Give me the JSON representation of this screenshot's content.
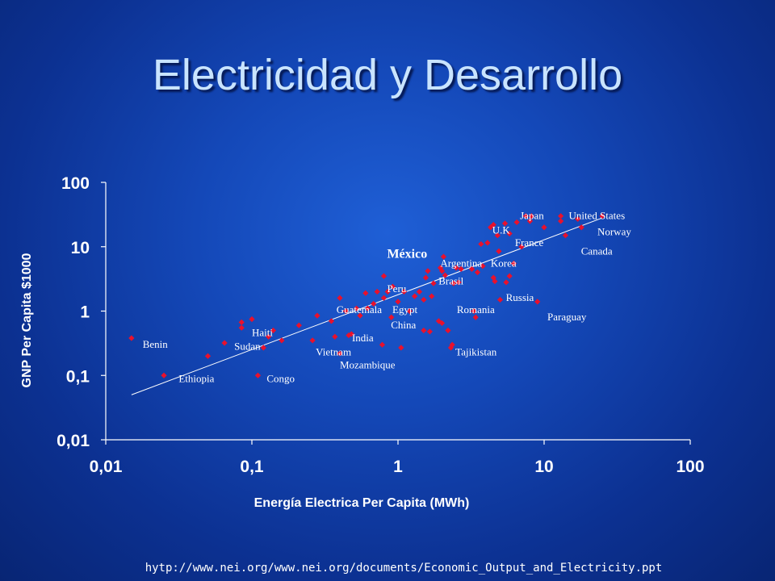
{
  "slide": {
    "title": "Electricidad y Desarrollo",
    "source": "hytp://www.nei.org/www.nei.org/documents/Economic_Output_and_Electricity.ppt"
  },
  "colors": {
    "point": "#e8112d",
    "axis": "#ffffff",
    "trend": "#ffffff"
  },
  "chart_data": {
    "type": "scatter",
    "xlabel": "Energía Electrica  Per Capita (MWh)",
    "ylabel": "GNP Per Capita $1000",
    "xscale": "log",
    "yscale": "log",
    "xlim": [
      0.01,
      100
    ],
    "ylim": [
      0.01,
      100
    ],
    "xticks": [
      "0,01",
      "0,1",
      "1",
      "10",
      "100"
    ],
    "yticks": [
      "0,01",
      "0,1",
      "1",
      "10",
      "100"
    ],
    "grid": false,
    "trendline": {
      "x": [
        0.015,
        25
      ],
      "y": [
        0.05,
        28
      ]
    },
    "labels": [
      {
        "text": "Japan",
        "x": 6.5,
        "y": 30
      },
      {
        "text": "United States",
        "x": 14,
        "y": 30
      },
      {
        "text": "Norway",
        "x": 22,
        "y": 17
      },
      {
        "text": "U.K",
        "x": 4.2,
        "y": 18
      },
      {
        "text": "France",
        "x": 6,
        "y": 11.5
      },
      {
        "text": "Canada",
        "x": 17,
        "y": 8.5
      },
      {
        "text": "México",
        "x": 0.8,
        "y": 7.5,
        "bold": true
      },
      {
        "text": "Argentina",
        "x": 1.85,
        "y": 5.5
      },
      {
        "text": "Korea",
        "x": 4.1,
        "y": 5.5
      },
      {
        "text": "Brasil",
        "x": 1.8,
        "y": 2.9
      },
      {
        "text": "Peru",
        "x": 0.8,
        "y": 2.2
      },
      {
        "text": "Russia",
        "x": 5.2,
        "y": 1.6
      },
      {
        "text": "Guatemala",
        "x": 0.36,
        "y": 1.05
      },
      {
        "text": "Egypt",
        "x": 0.87,
        "y": 1.05
      },
      {
        "text": "Romania",
        "x": 2.4,
        "y": 1.05
      },
      {
        "text": "Paraguay",
        "x": 10,
        "y": 0.8
      },
      {
        "text": "China",
        "x": 0.85,
        "y": 0.6
      },
      {
        "text": "Haiti",
        "x": 0.095,
        "y": 0.46
      },
      {
        "text": "India",
        "x": 0.46,
        "y": 0.38
      },
      {
        "text": "Benin",
        "x": 0.017,
        "y": 0.3
      },
      {
        "text": "Sudan",
        "x": 0.072,
        "y": 0.28
      },
      {
        "text": "Vietnam",
        "x": 0.26,
        "y": 0.23
      },
      {
        "text": "Tajikistan",
        "x": 2.35,
        "y": 0.23
      },
      {
        "text": "Mozambique",
        "x": 0.38,
        "y": 0.145
      },
      {
        "text": "Ethiopia",
        "x": 0.03,
        "y": 0.088
      },
      {
        "text": "Congo",
        "x": 0.12,
        "y": 0.088
      }
    ],
    "points": [
      {
        "x": 0.015,
        "y": 0.38
      },
      {
        "x": 0.025,
        "y": 0.1
      },
      {
        "x": 0.05,
        "y": 0.2
      },
      {
        "x": 0.065,
        "y": 0.32
      },
      {
        "x": 0.085,
        "y": 0.55
      },
      {
        "x": 0.085,
        "y": 0.67
      },
      {
        "x": 0.1,
        "y": 0.75
      },
      {
        "x": 0.11,
        "y": 0.1
      },
      {
        "x": 0.12,
        "y": 0.27
      },
      {
        "x": 0.13,
        "y": 0.4
      },
      {
        "x": 0.14,
        "y": 0.5
      },
      {
        "x": 0.16,
        "y": 0.35
      },
      {
        "x": 0.21,
        "y": 0.6
      },
      {
        "x": 0.26,
        "y": 0.35
      },
      {
        "x": 0.28,
        "y": 0.85
      },
      {
        "x": 0.35,
        "y": 0.7
      },
      {
        "x": 0.37,
        "y": 0.4
      },
      {
        "x": 0.4,
        "y": 1.6
      },
      {
        "x": 0.4,
        "y": 0.22
      },
      {
        "x": 0.44,
        "y": 1.0
      },
      {
        "x": 0.46,
        "y": 0.42
      },
      {
        "x": 0.48,
        "y": 0.44
      },
      {
        "x": 0.52,
        "y": 1.1
      },
      {
        "x": 0.55,
        "y": 0.85
      },
      {
        "x": 0.6,
        "y": 1.9
      },
      {
        "x": 0.62,
        "y": 1.1
      },
      {
        "x": 0.68,
        "y": 1.3
      },
      {
        "x": 0.72,
        "y": 2.0
      },
      {
        "x": 0.78,
        "y": 0.3
      },
      {
        "x": 0.8,
        "y": 3.5
      },
      {
        "x": 0.8,
        "y": 1.6
      },
      {
        "x": 0.85,
        "y": 2.0
      },
      {
        "x": 0.9,
        "y": 0.8
      },
      {
        "x": 0.92,
        "y": 2.4
      },
      {
        "x": 1.0,
        "y": 1.4
      },
      {
        "x": 1.05,
        "y": 0.27
      },
      {
        "x": 1.1,
        "y": 2.0
      },
      {
        "x": 1.2,
        "y": 1.0
      },
      {
        "x": 1.3,
        "y": 1.7
      },
      {
        "x": 1.4,
        "y": 2.0
      },
      {
        "x": 1.5,
        "y": 1.5
      },
      {
        "x": 1.5,
        "y": 0.5
      },
      {
        "x": 1.55,
        "y": 3.3
      },
      {
        "x": 1.6,
        "y": 4.2
      },
      {
        "x": 1.65,
        "y": 0.48
      },
      {
        "x": 1.7,
        "y": 1.7
      },
      {
        "x": 1.75,
        "y": 2.7
      },
      {
        "x": 1.9,
        "y": 0.7
      },
      {
        "x": 1.95,
        "y": 4.7
      },
      {
        "x": 2.0,
        "y": 0.65
      },
      {
        "x": 2.0,
        "y": 4.2
      },
      {
        "x": 2.05,
        "y": 7.0
      },
      {
        "x": 2.1,
        "y": 3.6
      },
      {
        "x": 2.2,
        "y": 0.5
      },
      {
        "x": 2.3,
        "y": 0.27
      },
      {
        "x": 2.35,
        "y": 0.3
      },
      {
        "x": 2.4,
        "y": 2.7
      },
      {
        "x": 2.5,
        "y": 4.7
      },
      {
        "x": 2.6,
        "y": 2.8
      },
      {
        "x": 2.7,
        "y": 4.5
      },
      {
        "x": 3.2,
        "y": 4.5
      },
      {
        "x": 3.3,
        "y": 1.0
      },
      {
        "x": 3.4,
        "y": 0.8
      },
      {
        "x": 3.5,
        "y": 4.0
      },
      {
        "x": 3.7,
        "y": 11.0
      },
      {
        "x": 3.8,
        "y": 5.0
      },
      {
        "x": 4.1,
        "y": 11.5
      },
      {
        "x": 4.3,
        "y": 20.0
      },
      {
        "x": 4.5,
        "y": 22.0
      },
      {
        "x": 4.5,
        "y": 3.3
      },
      {
        "x": 4.6,
        "y": 2.9
      },
      {
        "x": 4.8,
        "y": 15.0
      },
      {
        "x": 4.9,
        "y": 8.5
      },
      {
        "x": 5.0,
        "y": 1.5
      },
      {
        "x": 5.4,
        "y": 23.0
      },
      {
        "x": 5.5,
        "y": 2.8
      },
      {
        "x": 5.8,
        "y": 16.0
      },
      {
        "x": 5.8,
        "y": 3.5
      },
      {
        "x": 6.2,
        "y": 5.5
      },
      {
        "x": 6.5,
        "y": 24.0
      },
      {
        "x": 7.0,
        "y": 10.0
      },
      {
        "x": 7.5,
        "y": 30.0
      },
      {
        "x": 8.0,
        "y": 25.0
      },
      {
        "x": 8.2,
        "y": 30.0
      },
      {
        "x": 9.0,
        "y": 1.4
      },
      {
        "x": 10.0,
        "y": 20.0
      },
      {
        "x": 13.0,
        "y": 25.0
      },
      {
        "x": 13.0,
        "y": 30.0
      },
      {
        "x": 14.0,
        "y": 15.0
      },
      {
        "x": 17.0,
        "y": 27.0
      },
      {
        "x": 18.0,
        "y": 20.0
      },
      {
        "x": 25.0,
        "y": 30.0
      }
    ]
  }
}
